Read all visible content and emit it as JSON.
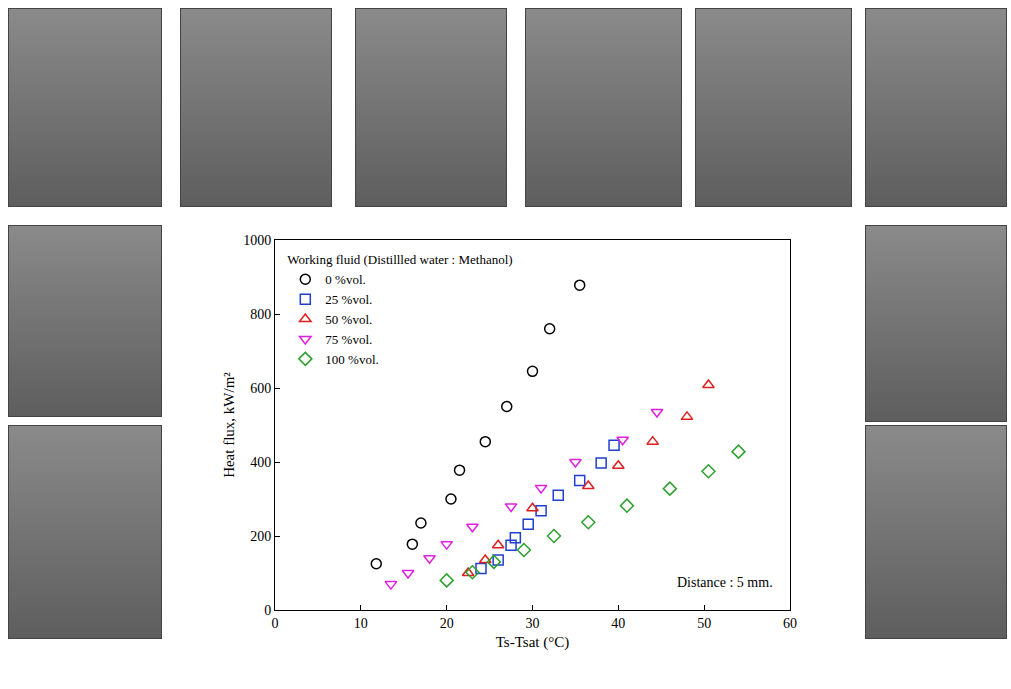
{
  "chart_data": {
    "type": "scatter",
    "x_label": "Ts-Tsat (°C)",
    "y_label": "Heat flux, kW/m²",
    "legend_title": "Working fluid (Distillled water : Methanol)",
    "annotation": "Distance : 5 mm.",
    "xlim": [
      0,
      60
    ],
    "xticks": [
      0,
      10,
      20,
      30,
      40,
      50,
      60
    ],
    "ylim": [
      0,
      1000
    ],
    "yticks": [
      0,
      200,
      400,
      600,
      800,
      1000
    ],
    "grid": false,
    "legend": "upper left",
    "series": [
      {
        "name": "0 %vol.",
        "color": "#000000",
        "marker": "circle-open",
        "x": [
          11.8,
          16,
          17,
          20.5,
          21.5,
          24.5,
          27,
          30,
          32,
          35.5
        ],
        "values": [
          125,
          178,
          235,
          300,
          378,
          455,
          550,
          645,
          760,
          878
        ]
      },
      {
        "name": "25 %vol.",
        "color": "#1f3fd1",
        "marker": "square-open",
        "x": [
          24,
          26,
          27.5,
          28,
          29.5,
          31,
          33,
          35.5,
          38,
          39.5
        ],
        "values": [
          112,
          135,
          175,
          195,
          232,
          268,
          310,
          350,
          397,
          445
        ]
      },
      {
        "name": "50 %vol.",
        "color": "#e02020",
        "marker": "triangle-up-open",
        "x": [
          22.5,
          24.5,
          26,
          30,
          36.5,
          40,
          44,
          48,
          50.5
        ],
        "values": [
          100,
          135,
          175,
          275,
          335,
          390,
          455,
          522,
          608
        ]
      },
      {
        "name": "75 %vol.",
        "color": "#e020e0",
        "marker": "triangle-down-open",
        "x": [
          13.5,
          15.5,
          18,
          20,
          23,
          27.5,
          31,
          35,
          40.5,
          44.5
        ],
        "values": [
          70,
          100,
          140,
          178,
          225,
          280,
          330,
          400,
          460,
          535
        ]
      },
      {
        "name": "100 %vol.",
        "color": "#2ca02c",
        "marker": "diamond-open",
        "x": [
          20,
          23,
          25.5,
          29,
          32.5,
          36.5,
          41,
          46,
          50.5,
          54
        ],
        "values": [
          80,
          102,
          130,
          162,
          200,
          237,
          282,
          328,
          375,
          428
        ]
      }
    ]
  }
}
